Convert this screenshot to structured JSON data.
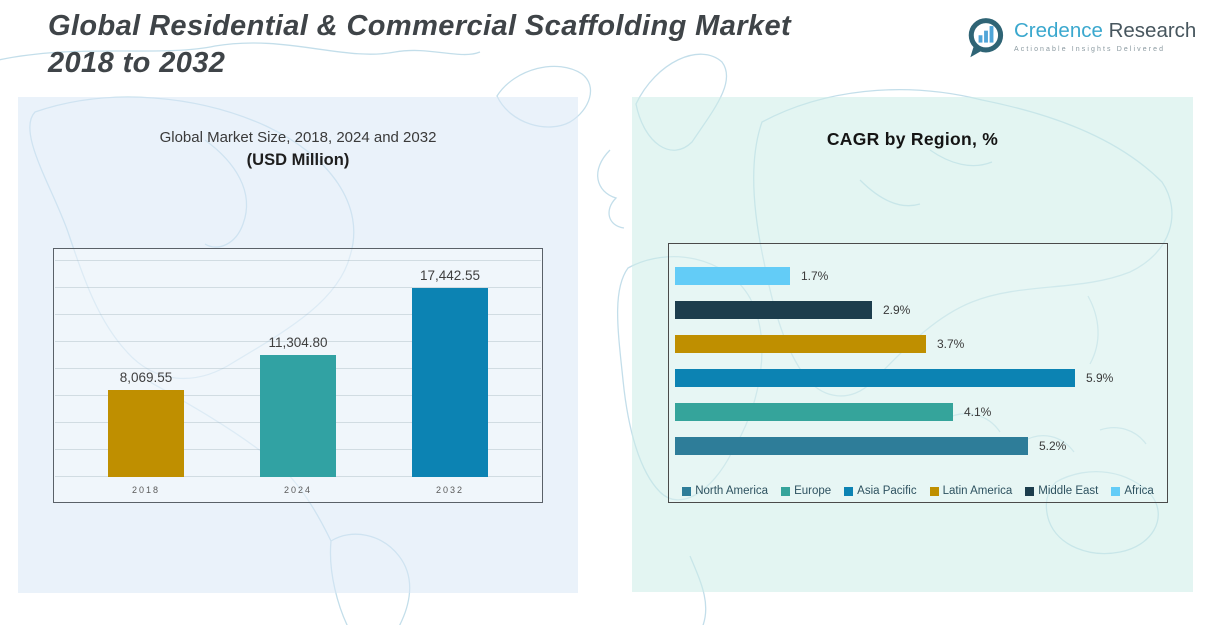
{
  "header": {
    "title_line1": "Global Residential & Commercial Scaffolding Market",
    "title_line2": "2018 to 2032",
    "logo": {
      "brand_first": "Credence",
      "brand_second": "Research",
      "tagline": "Actionable Insights Delivered",
      "icon": "bar-chart-speech-bubble-icon",
      "brand_first_color": "#3BA8CE",
      "brand_second_color": "#47565E"
    }
  },
  "left_panel": {
    "chart_title": "Global Market Size, 2018, 2024 and 2032",
    "chart_subtitle": "(USD Million)"
  },
  "right_panel": {
    "chart_title": "CAGR by Region, %"
  },
  "colors": {
    "left_panel_bg": "#E7EFF8",
    "right_panel_bg": "#E0F2EF",
    "map_line": "#BDDBE8",
    "chart_border": "#555555",
    "title_text": "#3F4448"
  },
  "chart_data": [
    {
      "type": "bar",
      "title": "Global Market Size, 2018, 2024 and 2032",
      "subtitle": "(USD Million)",
      "categories": [
        "2018",
        "2024",
        "2032"
      ],
      "values": [
        8069.55,
        11304.8,
        17442.55
      ],
      "value_labels": [
        "8,069.55",
        "11,304.80",
        "17,442.55"
      ],
      "bar_colors": [
        "#BF8F00",
        "#31A2A3",
        "#0C83B3"
      ],
      "xlabel": "",
      "ylabel": "USD Million",
      "ylim": [
        0,
        20000
      ],
      "grid": true,
      "legend_position": "none"
    },
    {
      "type": "bar-horizontal",
      "title": "CAGR by Region, %",
      "categories": [
        "Africa",
        "Middle East",
        "Latin America",
        "Asia Pacific",
        "Europe",
        "North America"
      ],
      "values": [
        1.7,
        2.9,
        3.7,
        5.9,
        4.1,
        5.2
      ],
      "value_labels": [
        "1.7%",
        "2.9%",
        "3.7%",
        "5.9%",
        "4.1%",
        "5.2%"
      ],
      "bar_colors": [
        "#63CCF7",
        "#1C3D4D",
        "#BF8F00",
        "#0C83B3",
        "#35A49B",
        "#2E7D99"
      ],
      "xlabel": "CAGR %",
      "xlim": [
        0,
        6.5
      ],
      "grid": false,
      "legend": [
        "North America",
        "Europe",
        "Asia Pacific",
        "Latin America",
        "Middle East",
        "Africa"
      ],
      "legend_colors": [
        "#2E7D99",
        "#35A49B",
        "#0C83B3",
        "#BF8F00",
        "#1C3D4D",
        "#63CCF7"
      ],
      "legend_position": "bottom"
    }
  ]
}
